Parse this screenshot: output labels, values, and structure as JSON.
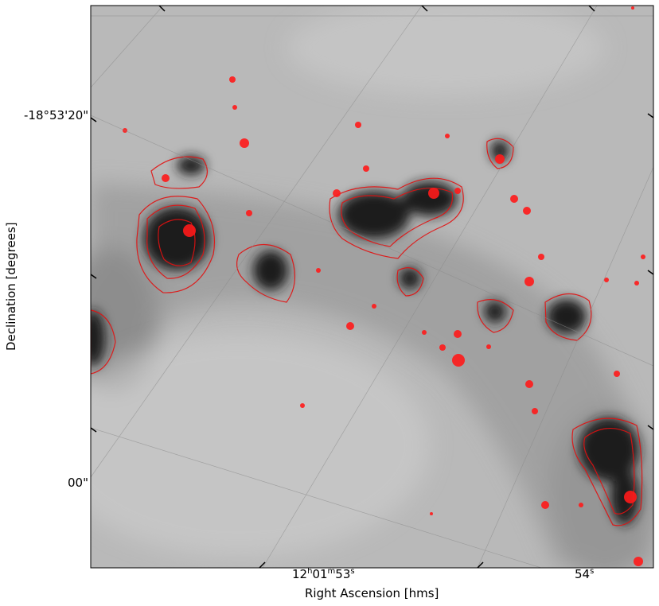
{
  "figure": {
    "xlabel": "Right Ascension [hms]",
    "ylabel": "Declination [degrees]",
    "x_ticks": [
      {
        "h": "12",
        "m": "01",
        "s": "53",
        "full": true
      },
      {
        "s": "54",
        "full": false
      }
    ],
    "y_ticks": [
      {
        "label": "-18°53'20\""
      },
      {
        "label": "00\""
      }
    ],
    "image_colormap": "gray_r",
    "contour_color": "#ff0000",
    "grid_color": "#8a8a8a"
  }
}
